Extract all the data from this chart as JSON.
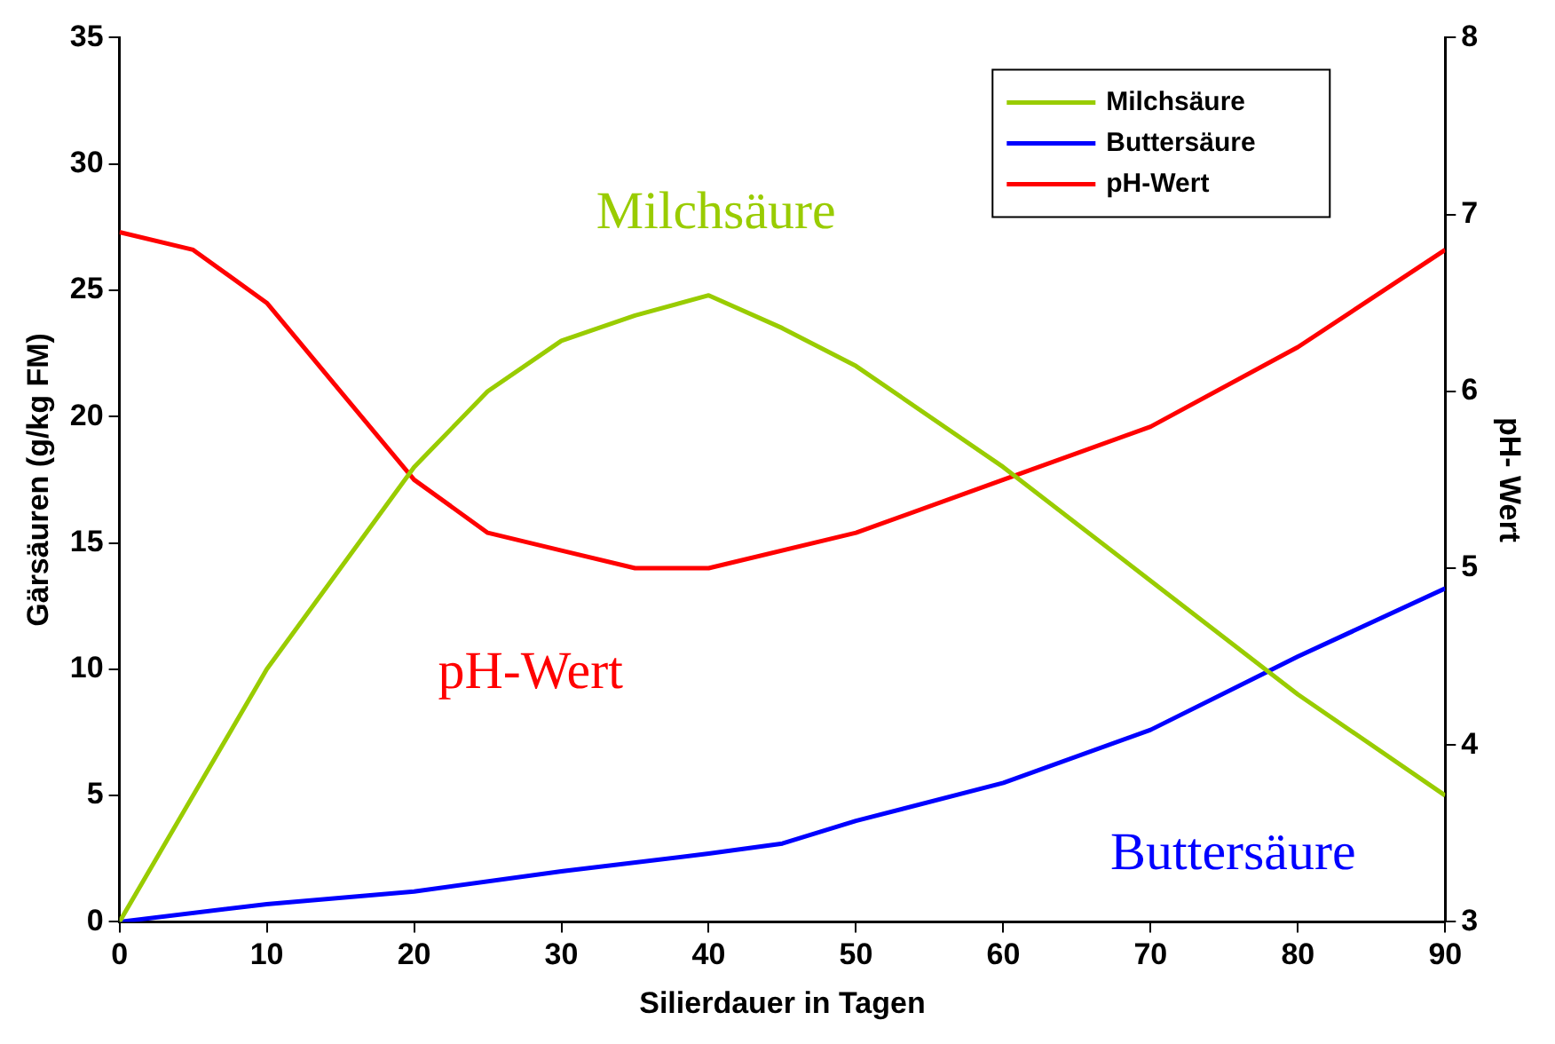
{
  "chart_data": {
    "type": "line",
    "xlabel": "Silierdauer in Tagen",
    "ylabel": "Gärsäuren (g/kg FM)",
    "y2label": "pH- Wert",
    "xlim": [
      0,
      90
    ],
    "xticks": [
      0,
      10,
      20,
      30,
      40,
      50,
      60,
      70,
      80,
      90
    ],
    "ylim": [
      0,
      35
    ],
    "yticks": [
      0,
      5,
      10,
      15,
      20,
      25,
      30,
      35
    ],
    "y2lim": [
      3,
      8
    ],
    "y2ticks": [
      3,
      4,
      5,
      6,
      7,
      8
    ],
    "grid": false,
    "legend": "top right",
    "marker": "none",
    "line_style": "solid",
    "series": [
      {
        "name": "Milchsäure",
        "color": "#99cc00",
        "x": [
          0,
          5,
          10,
          15,
          20,
          25,
          30,
          35,
          40,
          45,
          50,
          60,
          70,
          80,
          90
        ],
        "values": [
          0,
          5,
          10,
          14,
          18,
          21,
          23,
          24,
          24.8,
          23.5,
          22,
          18,
          13.5,
          9,
          5
        ]
      },
      {
        "name": "Buttersäure",
        "color": "#0000ff",
        "x": [
          0,
          10,
          20,
          30,
          40,
          45,
          50,
          60,
          70,
          80,
          90
        ],
        "values": [
          0,
          0.7,
          1.2,
          2,
          2.7,
          3.1,
          4,
          5.5,
          7.6,
          10.5,
          13.2
        ]
      },
      {
        "name": "pH-Wert",
        "color": "#ff0000",
        "axis": "y2",
        "x": [
          0,
          5,
          10,
          15,
          20,
          25,
          30,
          35,
          40,
          50,
          60,
          70,
          80,
          90
        ],
        "values": [
          6.9,
          6.8,
          6.5,
          6.0,
          5.5,
          5.2,
          5.1,
          5.0,
          5.0,
          5.2,
          5.5,
          5.8,
          6.25,
          6.8
        ]
      }
    ],
    "annotations": [
      "Milchsäure",
      "Buttersäure",
      "pH-Wert"
    ]
  }
}
